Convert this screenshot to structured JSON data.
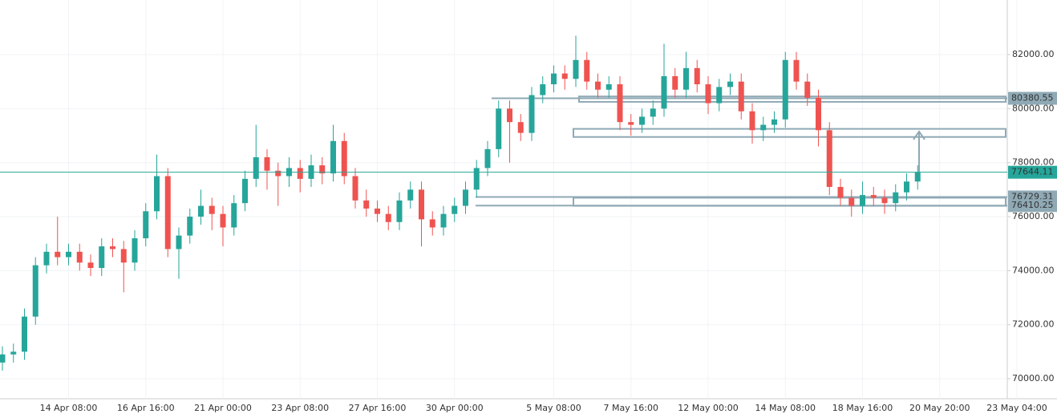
{
  "chart_data": {
    "type": "candlestick",
    "categories": [
      null,
      null,
      null,
      null,
      null,
      null,
      "14 Apr 08:00",
      null,
      null,
      null,
      null,
      null,
      null,
      "16 Apr 16:00",
      null,
      null,
      null,
      null,
      null,
      null,
      "21 Apr 00:00",
      null,
      null,
      null,
      null,
      null,
      null,
      "23 Apr 08:00",
      null,
      null,
      null,
      null,
      null,
      null,
      "27 Apr 16:00",
      null,
      null,
      null,
      null,
      null,
      null,
      "30 Apr 00:00",
      null,
      null,
      null,
      null,
      null,
      null,
      null,
      null,
      "5 May 08:00",
      null,
      null,
      null,
      null,
      null,
      null,
      "7 May 16:00",
      null,
      null,
      null,
      null,
      null,
      null,
      "12 May 00:00",
      null,
      null,
      null,
      null,
      null,
      null,
      "14 May 08:00",
      null,
      null,
      null,
      null,
      null,
      null,
      "18 May 16:00",
      null,
      null,
      null,
      null,
      null,
      null,
      "20 May 20:00",
      null,
      null,
      null,
      null,
      null,
      null,
      "23 May 04:00"
    ],
    "candles": [
      [
        70600,
        71200,
        70300,
        70900
      ],
      [
        70900,
        71300,
        70600,
        71000
      ],
      [
        71000,
        72600,
        70700,
        72300
      ],
      [
        72300,
        74500,
        72000,
        74200
      ],
      [
        74200,
        75000,
        73900,
        74700
      ],
      [
        74700,
        76000,
        74200,
        74500
      ],
      [
        74500,
        75000,
        74200,
        74700
      ],
      [
        74700,
        75000,
        74000,
        74300
      ],
      [
        74300,
        74600,
        73800,
        74100
      ],
      [
        74100,
        75200,
        73800,
        74900
      ],
      [
        74900,
        75200,
        74500,
        74800
      ],
      [
        74800,
        75100,
        73200,
        74300
      ],
      [
        74300,
        75500,
        74000,
        75200
      ],
      [
        75200,
        76500,
        74900,
        76200
      ],
      [
        76200,
        78300,
        75900,
        77500
      ],
      [
        77500,
        77800,
        74500,
        74800
      ],
      [
        74800,
        75600,
        73700,
        75300
      ],
      [
        75300,
        76300,
        75000,
        76000
      ],
      [
        76000,
        77000,
        75700,
        76400
      ],
      [
        76400,
        76700,
        75500,
        76100
      ],
      [
        76100,
        76400,
        74900,
        75600
      ],
      [
        75600,
        76800,
        75300,
        76500
      ],
      [
        76500,
        77700,
        76200,
        77400
      ],
      [
        77400,
        79400,
        77100,
        78200
      ],
      [
        78200,
        78500,
        77000,
        77700
      ],
      [
        77700,
        78000,
        76400,
        77500
      ],
      [
        77500,
        78200,
        77100,
        77800
      ],
      [
        77800,
        78100,
        76900,
        77400
      ],
      [
        77400,
        78300,
        77100,
        77900
      ],
      [
        77900,
        78200,
        77200,
        77600
      ],
      [
        77600,
        79400,
        77300,
        78800
      ],
      [
        78800,
        79100,
        77200,
        77500
      ],
      [
        77500,
        77800,
        76300,
        76600
      ],
      [
        76600,
        77000,
        76000,
        76300
      ],
      [
        76300,
        76600,
        75800,
        76100
      ],
      [
        76100,
        76400,
        75500,
        75800
      ],
      [
        75800,
        76900,
        75500,
        76600
      ],
      [
        76600,
        77300,
        76300,
        77000
      ],
      [
        77000,
        77300,
        74900,
        75900
      ],
      [
        75900,
        76200,
        75300,
        75600
      ],
      [
        75600,
        76400,
        75300,
        76100
      ],
      [
        76100,
        76700,
        75800,
        76400
      ],
      [
        76400,
        77300,
        76100,
        77000
      ],
      [
        77000,
        78100,
        76700,
        77800
      ],
      [
        77800,
        78800,
        77500,
        78500
      ],
      [
        78500,
        80300,
        78200,
        80000
      ],
      [
        80000,
        80300,
        78000,
        79500
      ],
      [
        79500,
        79800,
        78800,
        79100
      ],
      [
        79100,
        80800,
        78800,
        80500
      ],
      [
        80500,
        81200,
        80200,
        80900
      ],
      [
        80900,
        81600,
        80600,
        81300
      ],
      [
        81300,
        81600,
        80700,
        81100
      ],
      [
        81100,
        82700,
        80800,
        81800
      ],
      [
        81800,
        82100,
        80700,
        81000
      ],
      [
        81000,
        81300,
        80400,
        80700
      ],
      [
        80700,
        81200,
        80400,
        80900
      ],
      [
        80900,
        81200,
        79200,
        79500
      ],
      [
        79500,
        79800,
        79000,
        79400
      ],
      [
        79400,
        80000,
        79100,
        79700
      ],
      [
        79700,
        80300,
        79400,
        80000
      ],
      [
        80000,
        82400,
        79700,
        81200
      ],
      [
        81200,
        81500,
        80400,
        80700
      ],
      [
        80700,
        82100,
        80400,
        81500
      ],
      [
        81500,
        81800,
        80600,
        80900
      ],
      [
        80900,
        81200,
        79800,
        80200
      ],
      [
        80200,
        81100,
        79900,
        80800
      ],
      [
        80800,
        81300,
        80500,
        81000
      ],
      [
        81000,
        81300,
        79600,
        79900
      ],
      [
        79900,
        80200,
        78700,
        79200
      ],
      [
        79200,
        79700,
        78800,
        79400
      ],
      [
        79400,
        79900,
        79100,
        79600
      ],
      [
        79600,
        82100,
        79300,
        81800
      ],
      [
        81800,
        82100,
        80700,
        81000
      ],
      [
        81000,
        81300,
        80100,
        80400
      ],
      [
        80400,
        80700,
        78600,
        79200
      ],
      [
        79200,
        79500,
        76800,
        77100
      ],
      [
        77100,
        77400,
        76400,
        76700
      ],
      [
        76700,
        77000,
        76000,
        76400
      ],
      [
        76400,
        77300,
        76100,
        76800
      ],
      [
        76800,
        77100,
        76400,
        76700
      ],
      [
        76700,
        77000,
        76100,
        76500
      ],
      [
        76500,
        77200,
        76200,
        76900
      ],
      [
        76900,
        77600,
        76600,
        77300
      ],
      [
        77300,
        77900,
        77000,
        77644.11
      ],
      null,
      null,
      null,
      null,
      null,
      null,
      null,
      null,
      null
    ],
    "up_color": "#26a69a",
    "down_color": "#ef5350",
    "ylim": [
      69170,
      84020
    ],
    "yticks": [
      {
        "value": 70000,
        "label": "70000.00"
      },
      {
        "value": 72000,
        "label": "72000.00"
      },
      {
        "value": 74000,
        "label": "74000.00"
      },
      {
        "value": 76000,
        "label": "76000.00"
      },
      {
        "value": 78000,
        "label": "78000.00"
      },
      {
        "value": 80000,
        "label": "80000.00"
      },
      {
        "value": 82000,
        "label": "82000.00"
      }
    ],
    "grid": true,
    "current_price": 77644.11,
    "levels": [
      80380.55,
      76729.31,
      76410.25
    ],
    "zones": [
      [
        80450,
        80250
      ],
      [
        79250,
        78950
      ],
      [
        76700,
        76400
      ]
    ],
    "arrow": [
      77644.11,
      79150
    ]
  }
}
